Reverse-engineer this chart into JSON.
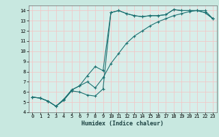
{
  "title": "",
  "xlabel": "Humidex (Indice chaleur)",
  "bg_color": "#c8e8e0",
  "plot_bg_color": "#d8eeea",
  "line_color": "#1a7070",
  "grid_color": "#f0c8c8",
  "xlim": [
    -0.5,
    23.5
  ],
  "ylim": [
    4,
    14.5
  ],
  "xticks": [
    0,
    1,
    2,
    3,
    4,
    5,
    6,
    7,
    8,
    9,
    10,
    11,
    12,
    13,
    14,
    15,
    16,
    17,
    18,
    19,
    20,
    21,
    22,
    23
  ],
  "yticks": [
    4,
    5,
    6,
    7,
    8,
    9,
    10,
    11,
    12,
    13,
    14
  ],
  "line1_x": [
    0,
    1,
    2,
    3,
    4,
    5,
    6,
    7,
    8,
    9,
    10,
    11,
    12,
    13,
    14,
    15,
    16,
    17,
    18,
    19,
    20,
    21,
    22,
    23
  ],
  "line1_y": [
    5.5,
    5.4,
    5.1,
    4.6,
    5.2,
    6.1,
    6.0,
    5.7,
    5.6,
    6.3,
    13.8,
    14.0,
    13.7,
    13.5,
    13.4,
    13.5,
    13.5,
    13.6,
    14.1,
    14.0,
    14.0,
    14.0,
    13.8,
    13.2
  ],
  "line2_x": [
    0,
    1,
    2,
    3,
    4,
    5,
    6,
    7,
    8,
    9,
    10,
    11,
    12,
    13,
    14,
    15,
    16,
    17,
    18,
    19,
    20,
    21,
    22,
    23
  ],
  "line2_y": [
    5.5,
    5.4,
    5.1,
    4.6,
    5.3,
    6.2,
    6.6,
    7.6,
    8.5,
    8.1,
    13.8,
    14.0,
    13.7,
    13.5,
    13.4,
    13.5,
    13.5,
    13.6,
    14.1,
    14.0,
    14.0,
    14.0,
    13.8,
    13.2
  ],
  "line3_x": [
    0,
    1,
    2,
    3,
    4,
    5,
    6,
    7,
    8,
    9,
    10,
    11,
    12,
    13,
    14,
    15,
    16,
    17,
    18,
    19,
    20,
    21,
    22,
    23
  ],
  "line3_y": [
    5.5,
    5.4,
    5.1,
    4.6,
    5.2,
    6.2,
    6.6,
    7.0,
    6.4,
    7.4,
    8.8,
    9.8,
    10.8,
    11.5,
    12.0,
    12.5,
    12.9,
    13.2,
    13.5,
    13.7,
    13.9,
    14.0,
    14.0,
    13.2
  ],
  "xlabel_fontsize": 6,
  "tick_fontsize": 5,
  "lw": 0.8,
  "ms": 3
}
